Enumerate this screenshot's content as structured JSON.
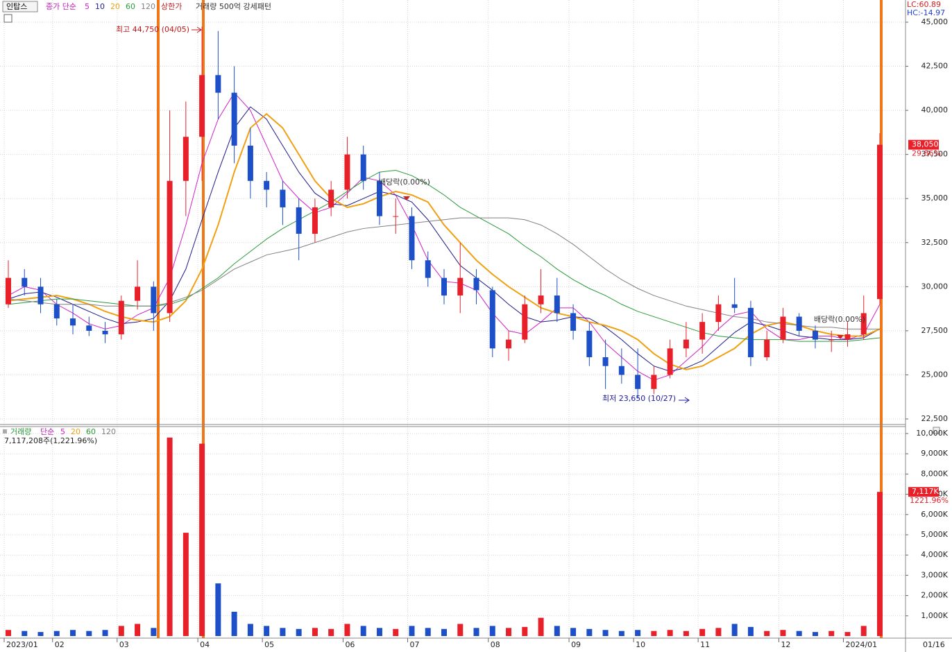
{
  "chart_data": [
    {
      "type": "candlestick",
      "stock_name": "인탑스",
      "legend_label": "종가 단순",
      "extra_legend": [
        "상한가",
        "거래량 500억 강세패턴"
      ],
      "corner_labels": [
        "LC:60.89",
        "HC:-14.97"
      ],
      "annotations": [
        "최고 44,750 (04/05)",
        "최저 23,650 (10/27)",
        "배당락(0.00%)",
        "배당락(0.00%)"
      ],
      "last_price_label": "38,050",
      "last_change_label": "29.86%",
      "last_date": "01/16",
      "categories": [
        "2023/01",
        null,
        null,
        "02",
        null,
        null,
        null,
        "03",
        null,
        null,
        null,
        null,
        "04",
        null,
        null,
        null,
        "05",
        null,
        null,
        null,
        null,
        "06",
        null,
        null,
        null,
        "07",
        null,
        null,
        null,
        null,
        "08",
        null,
        null,
        null,
        null,
        "09",
        null,
        null,
        null,
        "10",
        null,
        null,
        null,
        "11",
        null,
        null,
        null,
        null,
        "12",
        null,
        null,
        null,
        "2024/01",
        null,
        null
      ],
      "open": [
        29000,
        30500,
        30000,
        29000,
        28200,
        27800,
        27500,
        27300,
        29200,
        30000,
        28500,
        36000,
        38500,
        42000,
        41000,
        38000,
        36000,
        35500,
        34500,
        33000,
        34500,
        35500,
        37500,
        36000,
        34000,
        34000,
        31500,
        30500,
        29500,
        30500,
        29800,
        26500,
        27000,
        29000,
        29500,
        28500,
        27500,
        26000,
        25500,
        25000,
        24200,
        25000,
        26500,
        27000,
        28000,
        29000,
        28800,
        26000,
        27000,
        28300,
        27500,
        27000,
        27000,
        27300,
        29300
      ],
      "high": [
        31500,
        31000,
        30500,
        29300,
        29000,
        28300,
        28000,
        29500,
        31500,
        30300,
        40000,
        40500,
        44750,
        44500,
        42500,
        39000,
        36500,
        36000,
        35000,
        35000,
        36000,
        38500,
        38000,
        36500,
        35000,
        34500,
        32000,
        31000,
        32500,
        31000,
        30000,
        27500,
        29500,
        31000,
        30500,
        29000,
        28000,
        27000,
        26500,
        26500,
        25500,
        27000,
        28000,
        28500,
        29500,
        30500,
        29200,
        27500,
        28800,
        28500,
        27800,
        27500,
        28000,
        29500,
        38700
      ],
      "low": [
        28800,
        29500,
        28500,
        27800,
        27300,
        27200,
        26800,
        27000,
        28700,
        27500,
        28000,
        34000,
        36000,
        39500,
        37000,
        35000,
        34500,
        33500,
        31500,
        32500,
        34000,
        35000,
        35500,
        33500,
        33000,
        31000,
        30000,
        29000,
        28500,
        29000,
        26000,
        25800,
        26800,
        28500,
        28000,
        27000,
        25500,
        24200,
        24500,
        23650,
        23900,
        24800,
        26000,
        26200,
        27500,
        28500,
        25500,
        25800,
        26800,
        27200,
        26500,
        26300,
        26600,
        27000,
        29000
      ],
      "close": [
        30500,
        30000,
        29000,
        28200,
        27800,
        27500,
        27300,
        29200,
        30000,
        28500,
        36000,
        38500,
        42000,
        41000,
        38000,
        36000,
        35500,
        34500,
        33000,
        34500,
        35500,
        37500,
        36000,
        34000,
        34000,
        31500,
        30500,
        29500,
        30500,
        29800,
        26500,
        27000,
        29000,
        29500,
        28500,
        27500,
        26000,
        25500,
        25000,
        24200,
        25000,
        26500,
        27000,
        28000,
        29000,
        28800,
        26000,
        27000,
        28300,
        27500,
        27000,
        27000,
        27300,
        28500,
        38050
      ],
      "up_color": "#e8202a",
      "down_color": "#1c4fc8",
      "series": [
        {
          "name": "5",
          "color": "#d020c8",
          "values": [
            29500,
            30000,
            29800,
            29000,
            28500,
            27900,
            27600,
            27800,
            28400,
            28800,
            30500,
            33500,
            37000,
            39500,
            41000,
            40000,
            38000,
            36000,
            35000,
            34200,
            34500,
            35300,
            36200,
            36000,
            35200,
            33500,
            31500,
            30300,
            30200,
            29800,
            28500,
            27500,
            27300,
            28000,
            28800,
            28800,
            28000,
            26800,
            26000,
            25200,
            24700,
            25000,
            25800,
            26600,
            27600,
            28400,
            28600,
            27600,
            27000,
            27000,
            27200,
            27200,
            27000,
            27300,
            29000
          ]
        },
        {
          "name": "10",
          "color": "#1a1a8c",
          "values": [
            29300,
            29600,
            29700,
            29400,
            29000,
            28600,
            28200,
            27900,
            28000,
            28200,
            29200,
            31000,
            33800,
            36500,
            39000,
            40200,
            39500,
            38000,
            36500,
            35300,
            34700,
            34600,
            35000,
            35400,
            35200,
            34800,
            33800,
            32500,
            31200,
            30500,
            29800,
            29000,
            28300,
            28000,
            28100,
            28300,
            28200,
            27700,
            27000,
            26200,
            25500,
            25200,
            25400,
            25800,
            26600,
            27400,
            28000,
            27800,
            27500,
            27200,
            27100,
            27000,
            27000,
            27100,
            27600
          ]
        },
        {
          "name": "20",
          "color": "#f0a010",
          "values": [
            29200,
            29300,
            29400,
            29500,
            29300,
            29000,
            28600,
            28300,
            28100,
            28000,
            28300,
            29200,
            31000,
            33500,
            36500,
            39000,
            39800,
            39000,
            37500,
            36000,
            35000,
            34500,
            34700,
            35100,
            35400,
            35200,
            34800,
            33500,
            32500,
            31500,
            30700,
            30000,
            29400,
            28800,
            28500,
            28300,
            28000,
            27800,
            27500,
            27000,
            26200,
            25600,
            25300,
            25500,
            26000,
            26500,
            27300,
            27800,
            28000,
            27800,
            27500,
            27300,
            27200,
            27200,
            27600
          ]
        },
        {
          "name": "60",
          "color": "#2a9a3a",
          "values": [
            29000,
            29100,
            29200,
            29300,
            29300,
            29200,
            29100,
            29000,
            28900,
            28900,
            29000,
            29300,
            29900,
            30500,
            31300,
            32000,
            32700,
            33300,
            33800,
            34300,
            34800,
            35400,
            36000,
            36500,
            36600,
            36300,
            35800,
            35200,
            34500,
            34000,
            33500,
            33000,
            32300,
            31700,
            31000,
            30400,
            29900,
            29500,
            29000,
            28600,
            28300,
            28000,
            27700,
            27400,
            27200,
            27100,
            27000,
            27000,
            27000,
            26900,
            26900,
            26900,
            26900,
            27000,
            27100
          ]
        },
        {
          "name": "120",
          "color": "#808080",
          "values": [
            29300,
            29200,
            29100,
            29000,
            29000,
            29000,
            28900,
            28900,
            28900,
            28900,
            29100,
            29400,
            29800,
            30400,
            31000,
            31400,
            31800,
            32000,
            32200,
            32500,
            32800,
            33100,
            33300,
            33400,
            33500,
            33600,
            33700,
            33800,
            33900,
            33900,
            33900,
            33900,
            33800,
            33500,
            33000,
            32400,
            31700,
            31000,
            30400,
            29900,
            29500,
            29200,
            28900,
            28700,
            28500,
            28300,
            28200,
            28000,
            27900,
            27800,
            27700,
            27700,
            27600,
            27600,
            27600
          ]
        }
      ],
      "ylim": [
        22500,
        45000
      ],
      "yticks": [
        {
          "value": 22500,
          "label": "22,500"
        },
        {
          "value": 25000,
          "label": "25,000"
        },
        {
          "value": 27500,
          "label": "27,500"
        },
        {
          "value": 30000,
          "label": "30,000"
        },
        {
          "value": 32500,
          "label": "32,500"
        },
        {
          "value": 35000,
          "label": "35,000"
        },
        {
          "value": 37500,
          "label": "37,500"
        },
        {
          "value": 40000,
          "label": "40,000"
        },
        {
          "value": 42500,
          "label": "42,500"
        },
        {
          "value": 45000,
          "label": "45,000"
        }
      ],
      "grid": true
    },
    {
      "type": "bar",
      "legend_label": "거래량",
      "ma_label": "단순",
      "ma_names": [
        "5",
        "20",
        "60",
        "120"
      ],
      "ma_colors": [
        "#d020c8",
        "#f0a010",
        "#2a9a3a",
        "#808080"
      ],
      "volume_label": "7,117,208주(1,221.96%)",
      "last_volume_label": "7,117K",
      "last_volume_change": "1221.96%",
      "values": [
        300,
        250,
        200,
        250,
        300,
        250,
        300,
        500,
        600,
        400,
        9800,
        5100,
        9500,
        2600,
        1200,
        600,
        500,
        400,
        350,
        400,
        350,
        600,
        500,
        400,
        350,
        500,
        400,
        350,
        600,
        400,
        500,
        400,
        450,
        900,
        500,
        400,
        350,
        300,
        250,
        300,
        250,
        300,
        250,
        350,
        400,
        600,
        450,
        250,
        300,
        250,
        200,
        250,
        200,
        500,
        7117
      ],
      "ylim": [
        0,
        10000
      ],
      "yticks": [
        {
          "value": 1000,
          "label": "1,000K"
        },
        {
          "value": 2000,
          "label": "2,000K"
        },
        {
          "value": 3000,
          "label": "3,000K"
        },
        {
          "value": 4000,
          "label": "4,000K"
        },
        {
          "value": 5000,
          "label": "5,000K"
        },
        {
          "value": 6000,
          "label": "6,000K"
        },
        {
          "value": 7000,
          "label": "7,000K"
        },
        {
          "value": 8000,
          "label": "8,000K"
        },
        {
          "value": 9000,
          "label": "9,000K"
        },
        {
          "value": 10000,
          "label": "10,000K"
        }
      ],
      "grid": true
    }
  ]
}
